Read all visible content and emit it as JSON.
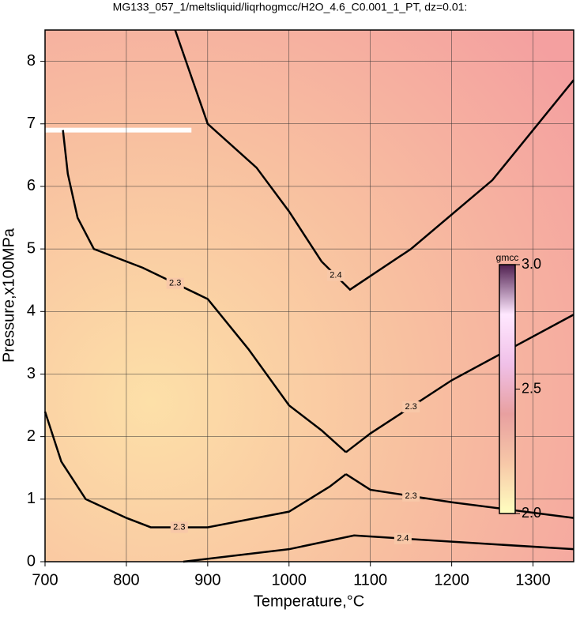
{
  "chart_data": {
    "type": "contour",
    "title": "MG133_057_1/meltsliquid/liqrhogmcc/H2O_4.6_C0.001_1_PT, dz=0.01:",
    "x_label": "Temperature,°C",
    "y_label": "Pressure,x100MPa",
    "xlim": [
      700,
      1350
    ],
    "ylim": [
      0,
      8.5
    ],
    "xticks": [
      700,
      800,
      900,
      1000,
      1100,
      1200,
      1300
    ],
    "yticks": [
      0,
      1,
      2,
      3,
      4,
      5,
      6,
      7,
      8
    ],
    "grid": true,
    "colorbar": {
      "label": "gmcc",
      "lim": [
        2.0,
        3.0
      ],
      "ticks": [
        {
          "value": 2.0,
          "label": "2.0"
        },
        {
          "value": 2.5,
          "label": "2.5"
        },
        {
          "value": 3.0,
          "label": "3.0"
        }
      ],
      "colors": [
        "#ffffc0",
        "#f7c8a8",
        "#e8a0a0",
        "#f0c0e8",
        "#ffe8ff",
        "#502050"
      ]
    },
    "contours": [
      {
        "level": 2.4,
        "x": [
          860,
          900,
          960,
          1000,
          1040,
          1075,
          1150,
          1250,
          1350
        ],
        "y": [
          8.5,
          7.0,
          6.3,
          5.6,
          4.8,
          4.35,
          5.0,
          6.1,
          7.7
        ]
      },
      {
        "level": 2.3,
        "x": [
          722,
          728,
          740,
          760,
          820,
          900,
          950,
          1000,
          1040,
          1070
        ],
        "y": [
          6.9,
          6.2,
          5.5,
          5.0,
          4.7,
          4.2,
          3.4,
          2.5,
          2.1,
          1.75
        ]
      },
      {
        "level": 2.3,
        "x": [
          1070,
          1100,
          1200,
          1350
        ],
        "y": [
          1.75,
          2.05,
          2.9,
          3.95
        ]
      },
      {
        "level": 2.3,
        "x": [
          700,
          720,
          750,
          800,
          830,
          900,
          1000,
          1050,
          1070
        ],
        "y": [
          2.4,
          1.6,
          1.0,
          0.7,
          0.55,
          0.55,
          0.8,
          1.2,
          1.4
        ]
      },
      {
        "level": 2.3,
        "x": [
          1070,
          1100,
          1200,
          1350
        ],
        "y": [
          1.4,
          1.15,
          0.95,
          0.7
        ]
      },
      {
        "level": 2.4,
        "x": [
          870,
          1000,
          1080,
          1200,
          1350
        ],
        "y": [
          0,
          0.2,
          0.42,
          0.32,
          0.2
        ]
      }
    ]
  }
}
